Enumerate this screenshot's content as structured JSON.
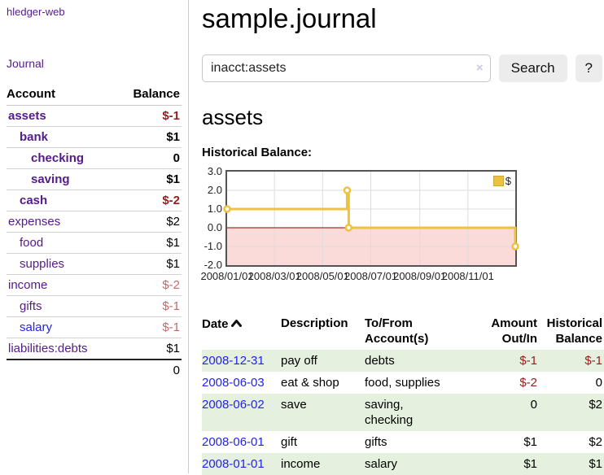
{
  "brand": "hledger-web",
  "sidebar": {
    "journal_link": "Journal",
    "accounts_table": {
      "headers": {
        "account": "Account",
        "balance": "Balance"
      },
      "rows": [
        {
          "name": "assets",
          "balance": "$-1"
        },
        {
          "name": "bank",
          "balance": "$1"
        },
        {
          "name": "checking",
          "balance": "0"
        },
        {
          "name": "saving",
          "balance": "$1"
        },
        {
          "name": "cash",
          "balance": "$-2"
        },
        {
          "name": "expenses",
          "balance": "$2"
        },
        {
          "name": "food",
          "balance": "$1"
        },
        {
          "name": "supplies",
          "balance": "$1"
        },
        {
          "name": "income",
          "balance": "$-2"
        },
        {
          "name": "gifts",
          "balance": "$-1"
        },
        {
          "name": "salary",
          "balance": "$-1"
        },
        {
          "name": "liabilities:debts",
          "balance": "$1"
        }
      ],
      "total": "0"
    }
  },
  "header": {
    "title": "sample.journal"
  },
  "search": {
    "query": "inacct:assets",
    "clear_icon": "×",
    "search_button": "Search",
    "help_button": "?"
  },
  "account_page": {
    "heading": "assets",
    "chart_label": "Historical Balance:"
  },
  "chart_data": {
    "type": "line",
    "step": true,
    "title": "Historical Balance",
    "series": [
      {
        "name": "$",
        "color": "#edc240",
        "points": [
          [
            "2008-01-01",
            1
          ],
          [
            "2008-06-01",
            2
          ],
          [
            "2008-06-03",
            0
          ],
          [
            "2008-12-31",
            -1
          ]
        ]
      }
    ],
    "ylim": [
      -2,
      3
    ],
    "yticks": [
      "3.0",
      "2.0",
      "1.0",
      "0.0",
      "-1.0",
      "-2.0"
    ],
    "xticks": [
      "2008/01/01",
      "2008/03/01",
      "2008/05/01",
      "2008/07/01",
      "2008/09/01",
      "2008/11/01"
    ],
    "x_range": [
      "2008-01-01",
      "2008-12-31"
    ],
    "legend": {
      "label": "$",
      "position": "top-right"
    },
    "grid": true,
    "negative_region_fill": "#fbdada",
    "zero_line_color": "#8b0000",
    "gridline_color": "#dcdcdc",
    "border_color": "#545454"
  },
  "register_table": {
    "headers": {
      "date": "Date",
      "description": "Description",
      "accounts": "To/From\nAccount(s)",
      "amount": "Amount\nOut/In",
      "balance": "Historical\nBalance"
    },
    "rows": [
      {
        "date": "2008-12-31",
        "description": "pay off",
        "accounts": "debts",
        "amount": "$-1",
        "balance": "$-1"
      },
      {
        "date": "2008-06-03",
        "description": "eat & shop",
        "accounts": "food, supplies",
        "amount": "$-2",
        "balance": "0"
      },
      {
        "date": "2008-06-02",
        "description": "save",
        "accounts": "saving,\nchecking",
        "amount": "0",
        "balance": "$2"
      },
      {
        "date": "2008-06-01",
        "description": "gift",
        "accounts": "gifts",
        "amount": "$1",
        "balance": "$2"
      },
      {
        "date": "2008-01-01",
        "description": "income",
        "accounts": "salary",
        "amount": "$1",
        "balance": "$1"
      }
    ]
  },
  "colors": {
    "link_purple": "#551a8b",
    "link_blue": "#2222ee",
    "negative_strong": "#9b1b1b",
    "negative_soft": "#c46a6a",
    "row_green": "#e6f0df",
    "chart_gold": "#edc240"
  }
}
